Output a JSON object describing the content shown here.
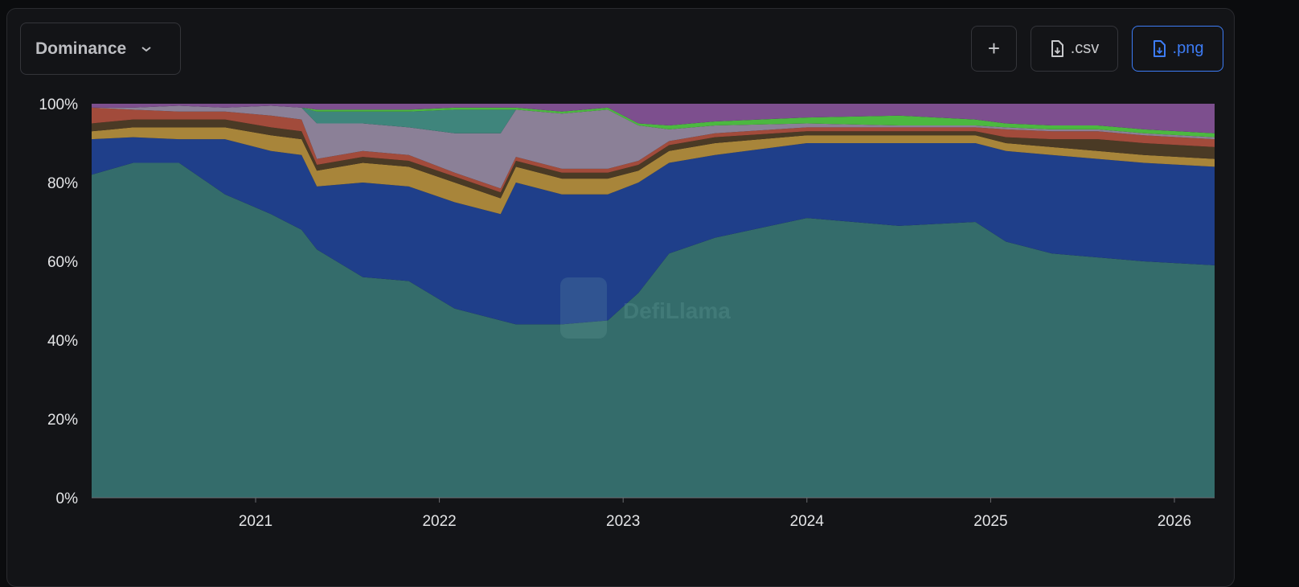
{
  "header": {
    "selector_label": "Dominance",
    "add_label": "+",
    "csv_label": ".csv",
    "png_label": ".png"
  },
  "icons": {
    "selector": "chevron-down-icon",
    "add": "plus-icon",
    "csv": "file-download-icon",
    "png": "file-download-icon"
  },
  "watermark": "DefiLlama",
  "chart_data": {
    "type": "area",
    "stacked": true,
    "normalized": true,
    "ylim": [
      0,
      100
    ],
    "yticks": [
      "0%",
      "20%",
      "40%",
      "60%",
      "80%",
      "100%"
    ],
    "xticks": [
      "2021",
      "2022",
      "2023",
      "2024",
      "2025",
      "2026"
    ],
    "grid": false,
    "legend": "none",
    "x": [
      "2020-02",
      "2020-05",
      "2020-08",
      "2020-11",
      "2021-02",
      "2021-04",
      "2021-05",
      "2021-08",
      "2021-11",
      "2022-02",
      "2022-05",
      "2022-06",
      "2022-09",
      "2022-12",
      "2023-02",
      "2023-04",
      "2023-07",
      "2024-01",
      "2024-07",
      "2024-12",
      "2025-02",
      "2025-05",
      "2025-08",
      "2025-11",
      "2026-03"
    ],
    "series": [
      {
        "color": "#346c6b",
        "values": [
          82,
          85,
          85,
          77,
          72,
          68,
          63,
          56,
          55,
          48,
          45,
          44,
          44,
          45,
          52,
          62,
          66,
          71,
          69,
          70,
          65,
          62,
          61,
          60,
          59
        ]
      },
      {
        "color": "#1f3f8a",
        "values": [
          9,
          6.5,
          6,
          14,
          16,
          19,
          16,
          24,
          24,
          27,
          27,
          36,
          33,
          32,
          28,
          23,
          21,
          19,
          21,
          20,
          23,
          25,
          25,
          25,
          25
        ]
      },
      {
        "color": "#a8853a",
        "values": [
          2,
          2.5,
          3,
          3,
          4,
          4,
          4,
          5,
          5,
          5,
          4,
          4,
          4,
          4,
          3,
          3,
          3,
          2,
          2,
          2,
          2,
          2,
          2,
          2,
          2
        ]
      },
      {
        "color": "#4a3a25",
        "values": [
          2,
          2,
          2,
          2,
          2,
          2,
          1.5,
          1.5,
          1.5,
          1.5,
          1.5,
          1.5,
          1.5,
          1.5,
          1.5,
          1.5,
          1.5,
          1,
          1,
          1,
          1.5,
          2,
          3,
          3,
          3
        ]
      },
      {
        "color": "#a24b3b",
        "values": [
          4,
          2.5,
          2,
          2,
          3,
          3,
          1.5,
          1.5,
          1.5,
          1,
          1,
          1,
          1,
          1,
          1,
          1,
          1,
          1,
          1,
          1,
          2,
          2,
          2,
          2,
          2
        ]
      },
      {
        "color": "#8b8097",
        "values": [
          0,
          0.5,
          1.5,
          1,
          2.5,
          3,
          9,
          7,
          7,
          10,
          14,
          12,
          14,
          15,
          9,
          3,
          2,
          1,
          0.5,
          0.5,
          0.5,
          0.5,
          0.5,
          0.5,
          0.5
        ]
      },
      {
        "color": "#3f857c",
        "values": [
          0,
          0,
          0,
          0,
          0,
          0,
          3,
          3,
          4,
          6,
          6,
          0,
          0,
          0,
          0,
          0,
          0,
          0,
          0,
          0,
          0,
          0,
          0,
          0,
          0
        ]
      },
      {
        "color": "#4cb840",
        "values": [
          0,
          0,
          0,
          0,
          0,
          0,
          0.5,
          0.5,
          0.5,
          0.5,
          0.5,
          0.5,
          0.5,
          0.5,
          0.5,
          1,
          1,
          1.5,
          2.5,
          1.5,
          1,
          1,
          1,
          1,
          1
        ]
      }
    ],
    "others_color": "#7d4f8e"
  }
}
